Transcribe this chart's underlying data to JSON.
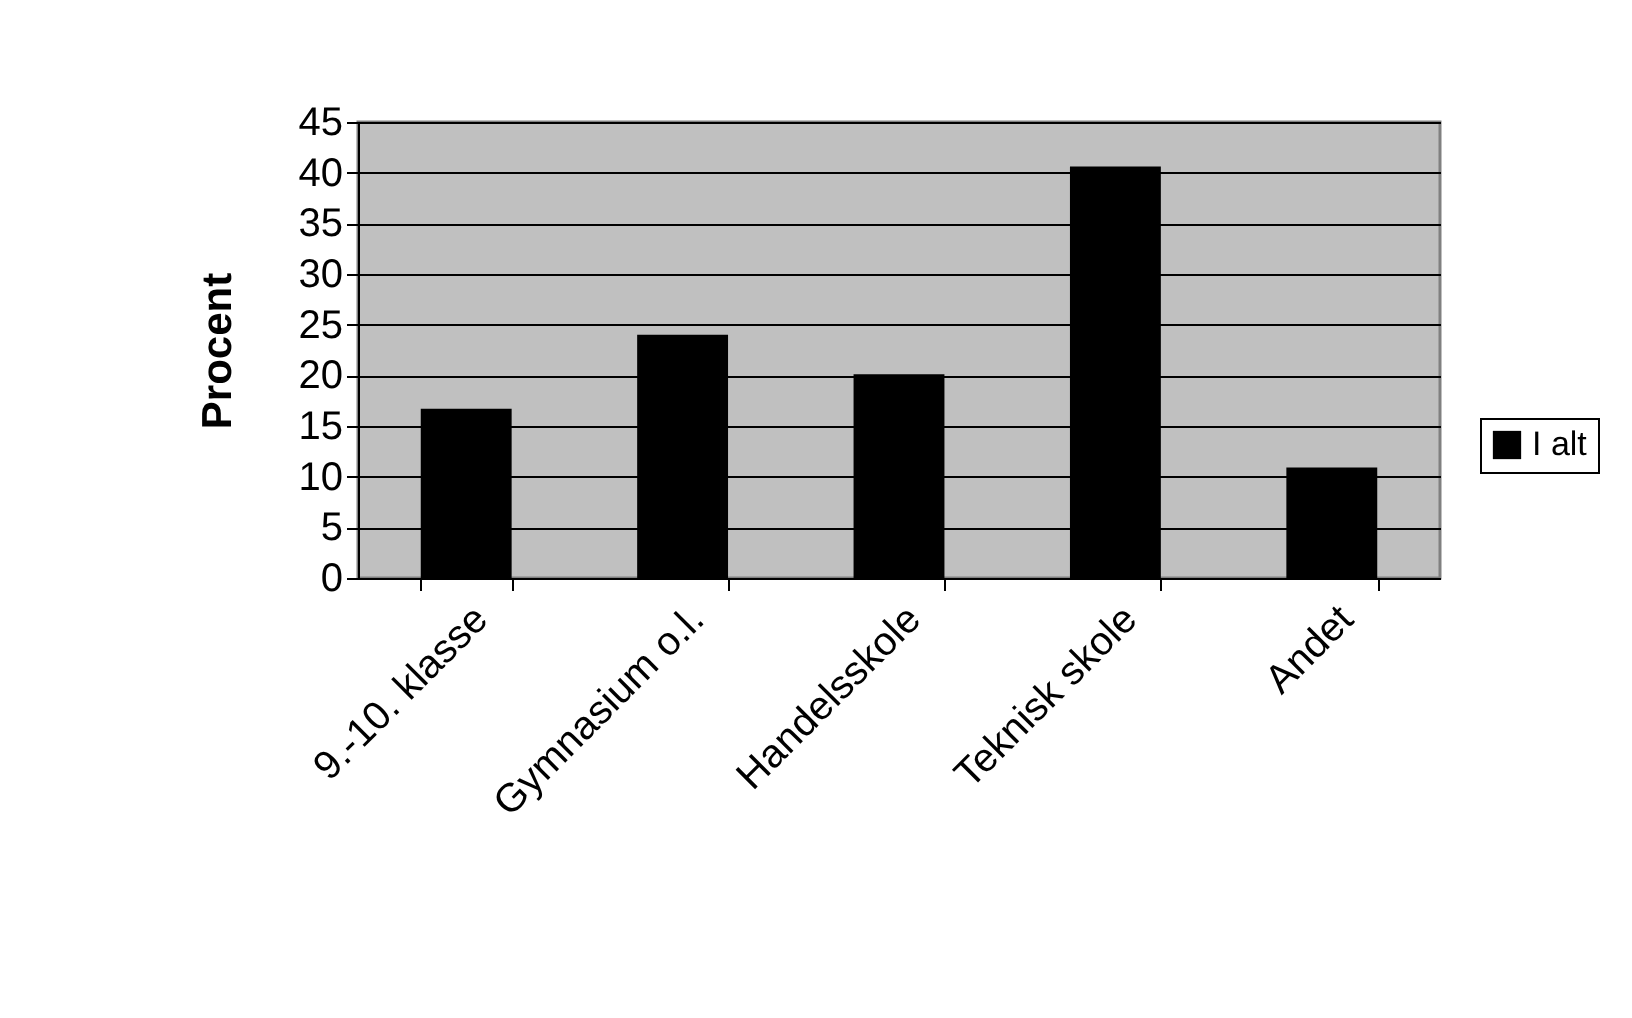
{
  "chart_data": {
    "type": "bar",
    "ylabel": "Procent",
    "categories": [
      "9.-10. klasse",
      "Gymnasium o.l.",
      "Handelsskole",
      "Teknisk skole",
      "Andet"
    ],
    "series": [
      {
        "name": "I alt",
        "color": "#000000",
        "values": [
          16.7,
          24.0,
          20.1,
          40.6,
          10.9
        ]
      }
    ],
    "ylim": [
      0,
      45
    ],
    "yticks": [
      0,
      5,
      10,
      15,
      20,
      25,
      30,
      35,
      40,
      45
    ],
    "grid": "y",
    "legend": "right"
  }
}
